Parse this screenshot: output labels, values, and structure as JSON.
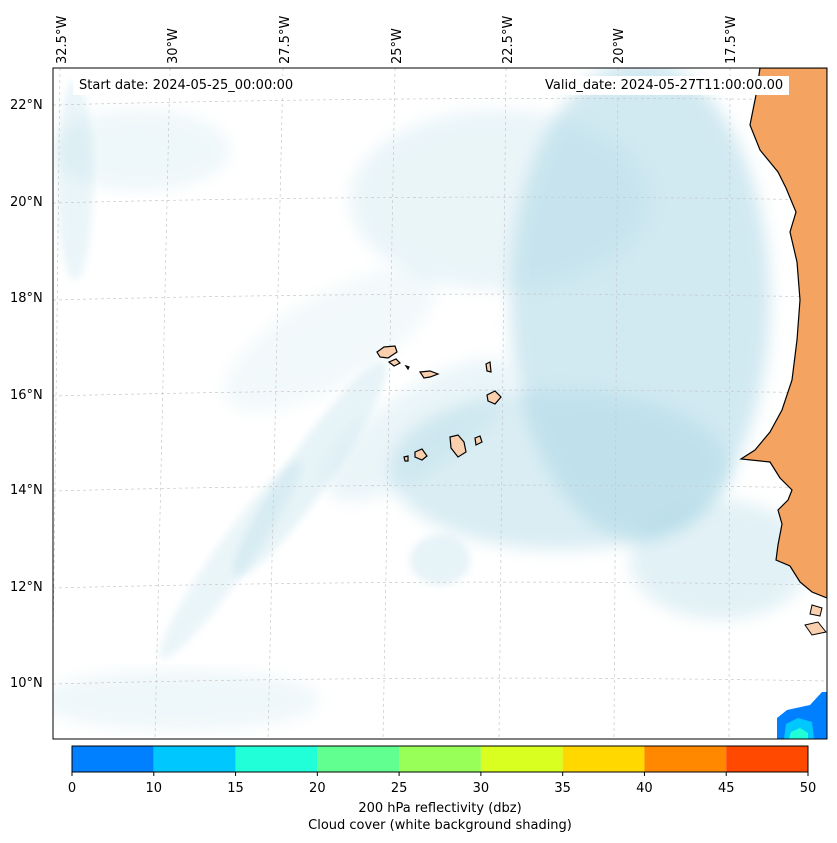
{
  "map": {
    "start_date_label": "Start date: 2024-05-25_00:00:00",
    "valid_date_label": "Valid_date: 2024-05-27T11:00:00.00",
    "longitude_labels": [
      "32.5°W",
      "30°W",
      "27.5°W",
      "25°W",
      "22.5°W",
      "20°W",
      "17.5°W"
    ],
    "latitude_labels": [
      "22°N",
      "20°N",
      "18°N",
      "16°N",
      "14°N",
      "12°N",
      "10°N"
    ],
    "ocean_color": "#ffffff",
    "land_color": "#f4a460",
    "island_color": "#f9cfae",
    "cloud_color": "#add8e6",
    "coastline_color": "#000000",
    "gridlines": true
  },
  "colorbar": {
    "ticks": [
      "0",
      "10",
      "15",
      "20",
      "25",
      "30",
      "35",
      "40",
      "45",
      "50"
    ],
    "colors": [
      "#0080ff",
      "#00c8ff",
      "#20ffd8",
      "#60ff90",
      "#98ff58",
      "#d8ff20",
      "#ffd800",
      "#ff8800",
      "#ff4800"
    ],
    "label_line1": "200 hPa reflectivity (dbz)",
    "label_line2": "Cloud cover (white background shading)"
  }
}
